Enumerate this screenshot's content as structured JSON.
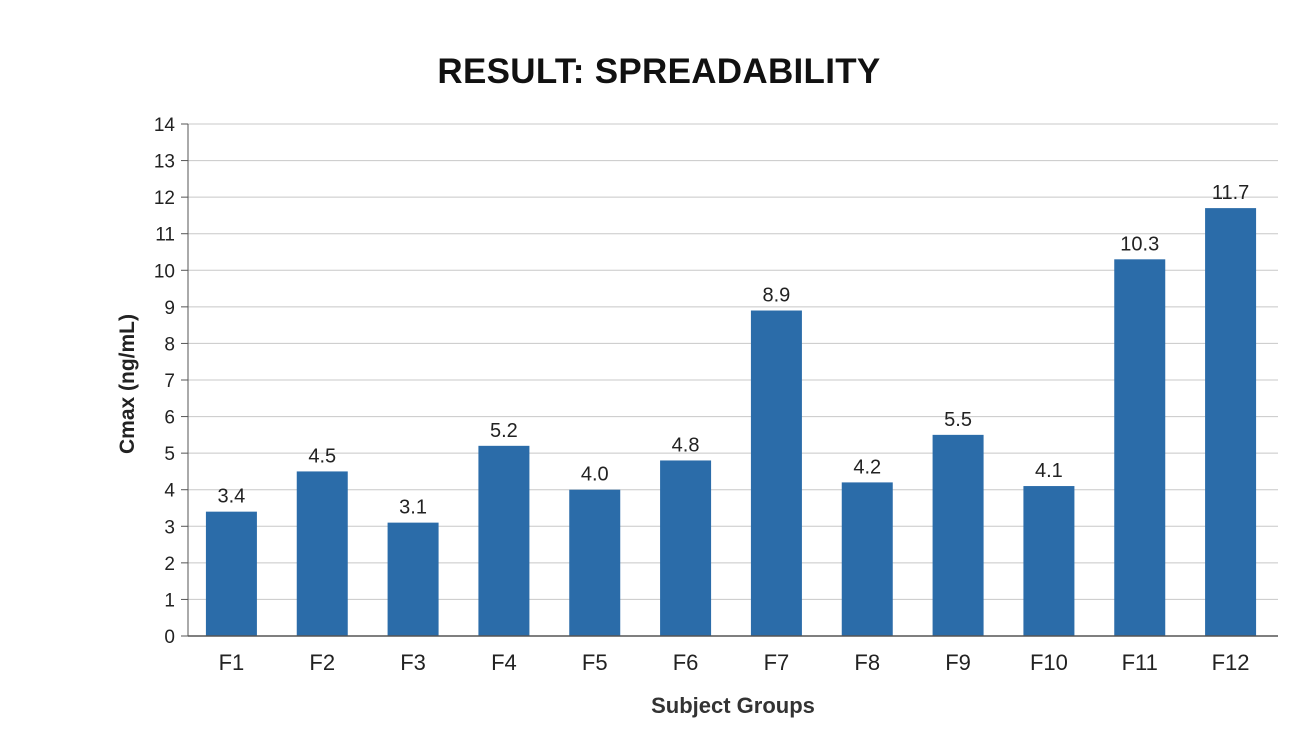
{
  "chart_data": {
    "type": "bar",
    "title": "RESULT: SPREADABILITY",
    "xlabel": "Subject Groups",
    "ylabel": "Cmax (ng/mL)",
    "categories": [
      "F1",
      "F2",
      "F3",
      "F4",
      "F5",
      "F6",
      "F7",
      "F8",
      "F9",
      "F10",
      "F11",
      "F12"
    ],
    "values": [
      3.4,
      4.5,
      3.1,
      5.2,
      4.0,
      4.8,
      8.9,
      4.2,
      5.5,
      4.1,
      10.3,
      11.7
    ],
    "data_labels": [
      "3.4",
      "4.5",
      "3.1",
      "5.2",
      "4.0",
      "4.8",
      "8.9",
      "4.2",
      "5.5",
      "4.1",
      "10.3",
      "11.7"
    ],
    "ylim": [
      0,
      14
    ],
    "yticks": [
      0,
      1,
      2,
      3,
      4,
      5,
      6,
      7,
      8,
      9,
      10,
      11,
      12,
      13,
      14
    ],
    "grid": true,
    "legend": "none",
    "bar_color": "#2b6ca9",
    "grid_color": "#c8c8c8",
    "text_color": "#222222"
  }
}
